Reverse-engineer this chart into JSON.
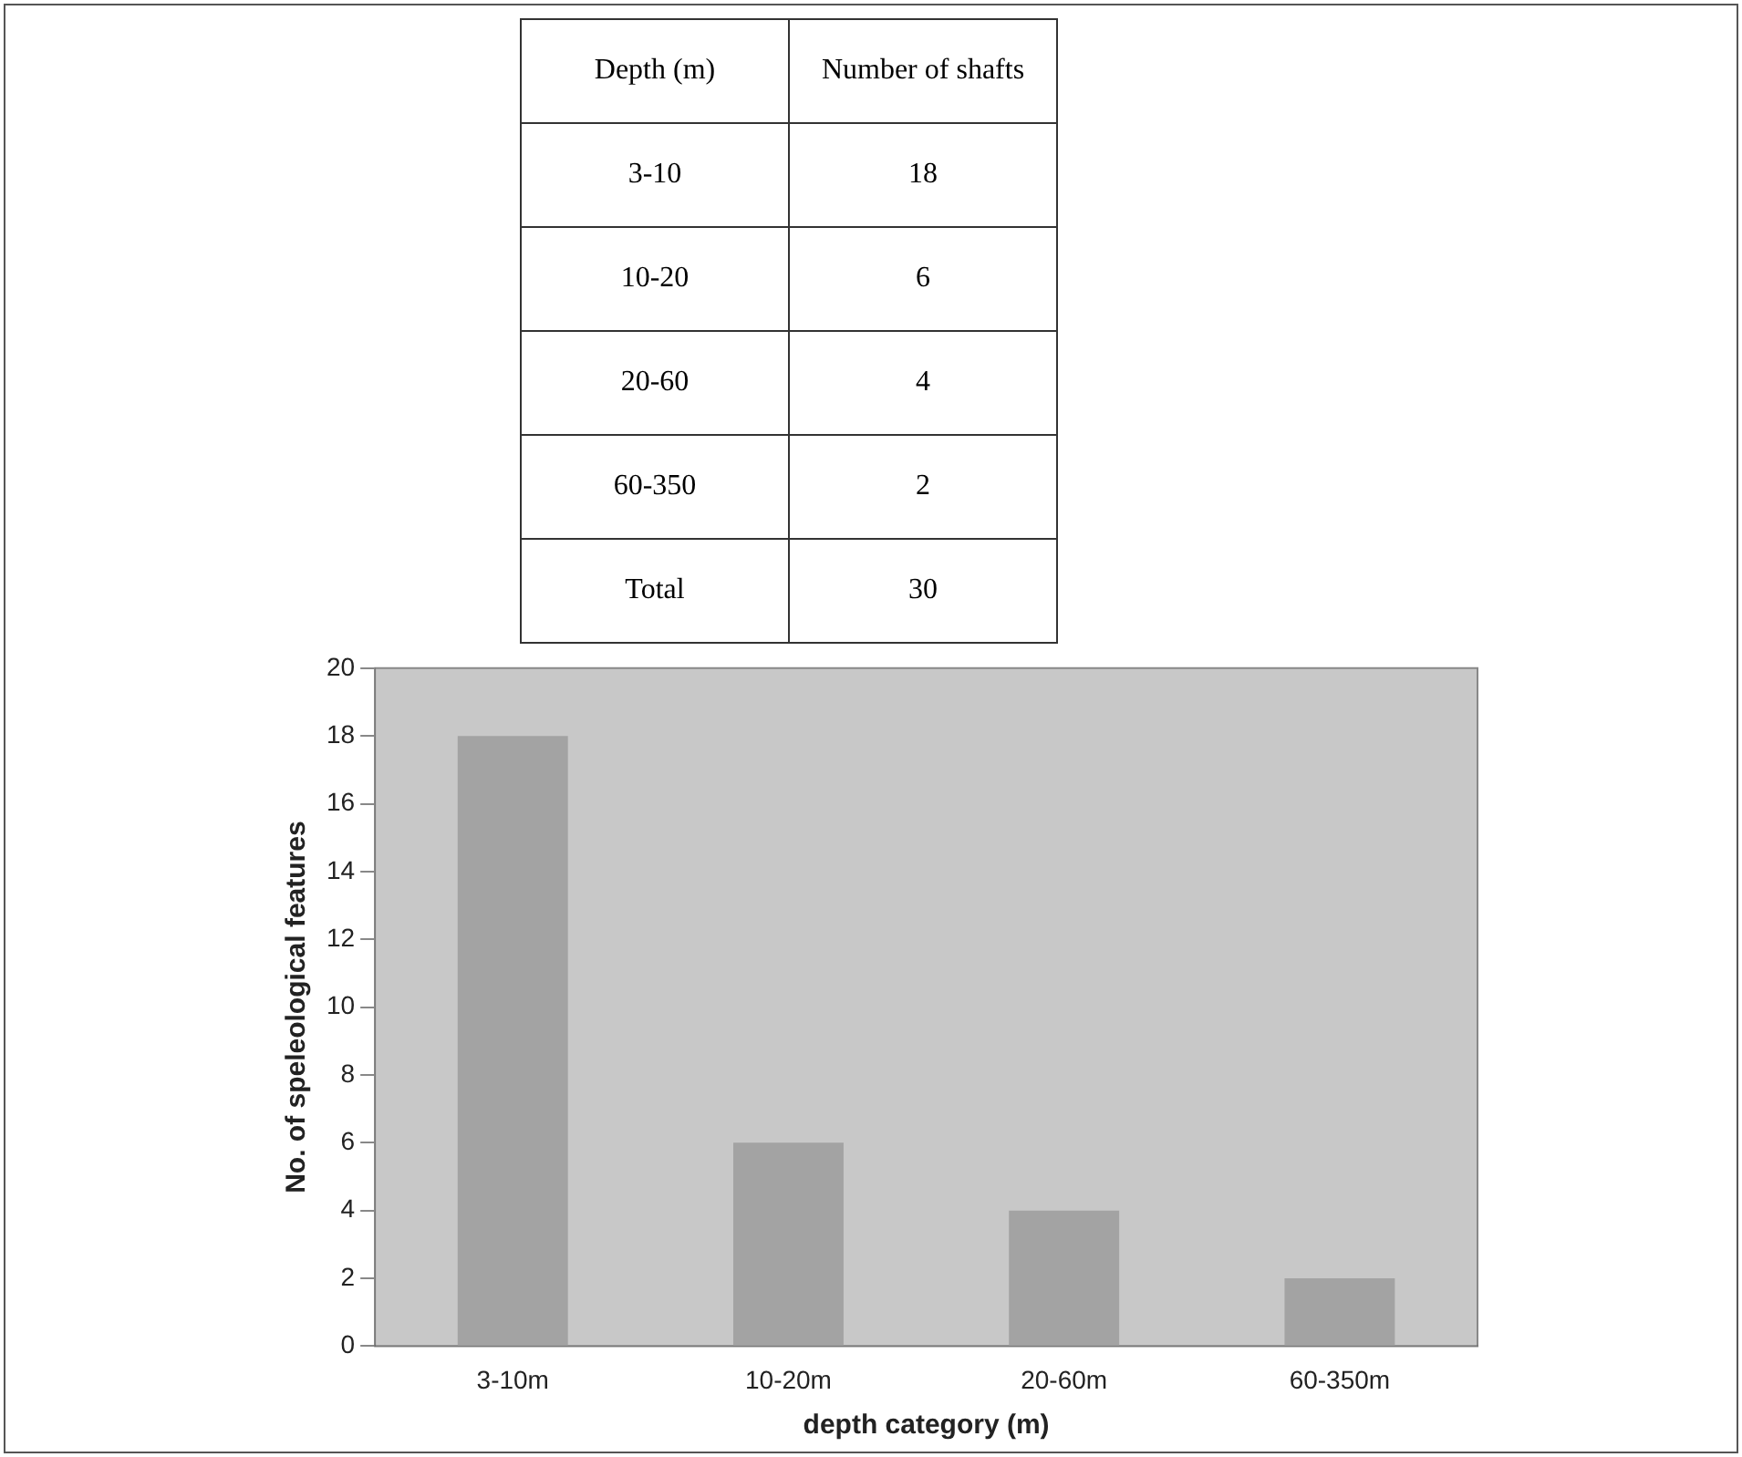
{
  "chart_data": [
    {
      "type": "other",
      "xlabel": "Depth (m)",
      "ylabel": "Number of shafts",
      "categories": [
        "3-10",
        "10-20",
        "20-60",
        "60-350",
        "Total"
      ],
      "values": [
        18,
        6,
        4,
        2,
        30
      ],
      "data_labels": true
    },
    {
      "type": "bar",
      "xlabel": "depth category (m)",
      "ylabel": "No. of speleological features",
      "categories": [
        "3-10m",
        "10-20m",
        "20-60m",
        "60-350m"
      ],
      "values": [
        18,
        6,
        4,
        2
      ],
      "color": "#a3a3a3",
      "ylim": [
        0,
        20
      ],
      "yticks": [
        0,
        2,
        4,
        6,
        8,
        10,
        12,
        14,
        16,
        18,
        20
      ],
      "grid": false,
      "legend": false
    }
  ]
}
